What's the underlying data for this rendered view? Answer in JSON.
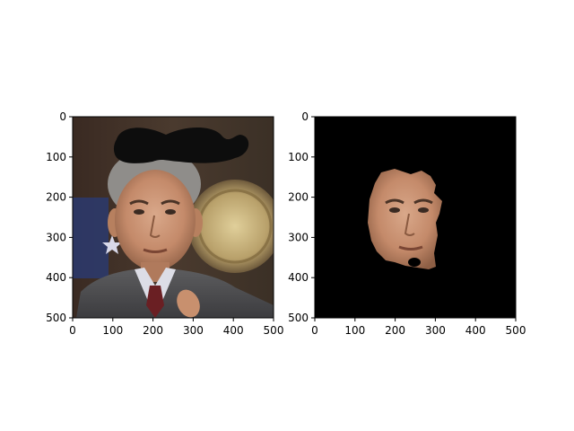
{
  "chart_data": [
    {
      "type": "image",
      "title": "",
      "xlabel": "",
      "ylabel": "",
      "xlim": [
        0,
        500
      ],
      "ylim": [
        500,
        0
      ],
      "xticks": [
        0,
        100,
        200,
        300,
        400,
        500
      ],
      "yticks": [
        0,
        100,
        200,
        300,
        400,
        500
      ],
      "content": "photo of a man in a suit with a drawn black moustache overlaid above his head"
    },
    {
      "type": "image",
      "title": "",
      "xlabel": "",
      "ylabel": "",
      "xlim": [
        0,
        500
      ],
      "ylim": [
        500,
        0
      ],
      "xticks": [
        0,
        100,
        200,
        300,
        400,
        500
      ],
      "yticks": [
        0,
        100,
        200,
        300,
        400,
        500
      ],
      "background": "#000000",
      "content": "segmented face region of the same man on a black background"
    }
  ]
}
